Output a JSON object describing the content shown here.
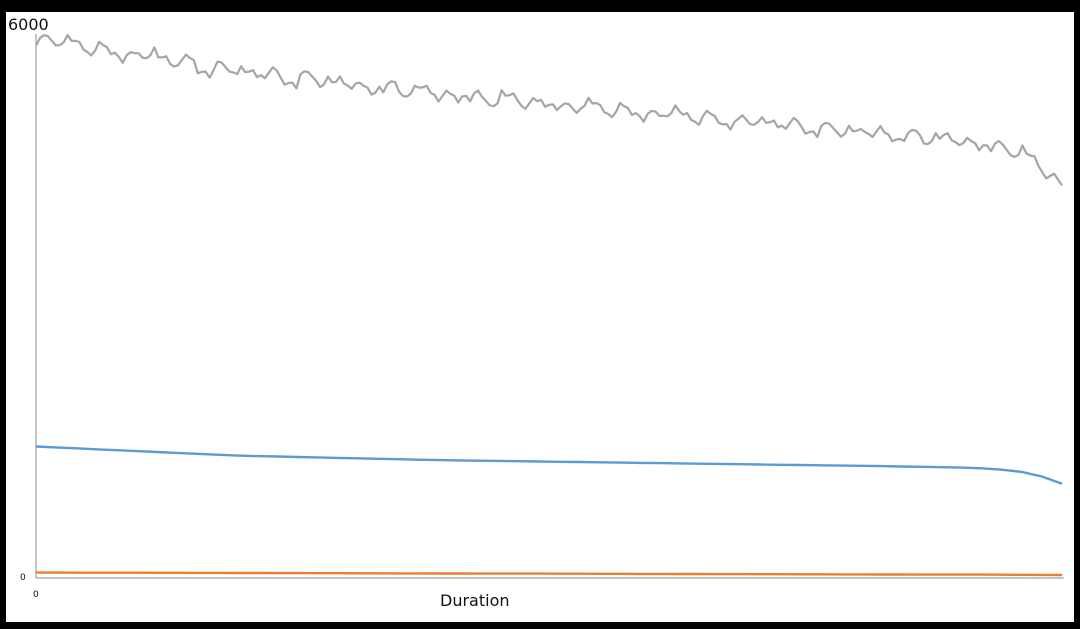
{
  "chart_data": {
    "type": "line",
    "title": "",
    "xlabel": "Duration",
    "ylabel": "",
    "x_tick_labels": [
      "0"
    ],
    "y_tick_labels": [
      "0",
      "6000"
    ],
    "ylim": [
      0,
      6000
    ],
    "grid": false,
    "legend": "none",
    "series": [
      {
        "color": "#a5a5a5",
        "values": [
          5950,
          5920,
          5880,
          5830,
          5800,
          5770,
          5750,
          5690,
          5660,
          5620,
          5590,
          5560,
          5540,
          5510,
          5490,
          5460,
          5430,
          5410,
          5390,
          5370,
          5340,
          5320,
          5300,
          5280,
          5260,
          5240,
          5220,
          5200,
          5180,
          5160,
          5140,
          5120,
          5100,
          5080,
          5060,
          5040,
          5020,
          5000,
          4980,
          4960,
          4940,
          4920,
          4900,
          4880,
          4860,
          4840,
          4820,
          4790,
          4750,
          4680,
          4520,
          4330
        ],
        "noise": [
          0,
          30,
          -40,
          60,
          -70,
          50,
          -60,
          80,
          -90,
          70,
          -50,
          60,
          -80,
          90,
          -60,
          50,
          -70,
          80,
          -60,
          40,
          -50,
          70,
          -80,
          60,
          -40,
          50,
          -70,
          60,
          -50,
          40,
          -60,
          70,
          -50,
          40,
          -60,
          50,
          -40,
          60,
          -50,
          40,
          -60,
          50,
          -40,
          60,
          -50,
          40,
          -50,
          40,
          -30,
          40,
          -20,
          0
        ]
      },
      {
        "color": "#5b9bd5",
        "values": [
          1450,
          1440,
          1430,
          1420,
          1410,
          1400,
          1390,
          1380,
          1370,
          1360,
          1350,
          1345,
          1340,
          1335,
          1330,
          1325,
          1320,
          1315,
          1310,
          1305,
          1300,
          1297,
          1294,
          1291,
          1288,
          1285,
          1282,
          1279,
          1276,
          1273,
          1270,
          1267,
          1264,
          1261,
          1258,
          1255,
          1252,
          1249,
          1246,
          1243,
          1240,
          1237,
          1234,
          1230,
          1226,
          1222,
          1218,
          1210,
          1195,
          1170,
          1120,
          1040
        ]
      },
      {
        "color": "#ed7d31",
        "values": [
          60,
          60,
          59,
          59,
          58,
          58,
          57,
          57,
          56,
          56,
          55,
          55,
          54,
          54,
          53,
          53,
          52,
          52,
          51,
          51,
          50,
          50,
          49,
          49,
          48,
          48,
          47,
          47,
          46,
          46,
          45,
          45,
          44,
          44,
          43,
          43,
          42,
          42,
          41,
          41,
          40,
          40,
          39,
          39,
          38,
          38,
          37,
          37,
          36,
          35,
          34,
          33
        ]
      }
    ]
  }
}
